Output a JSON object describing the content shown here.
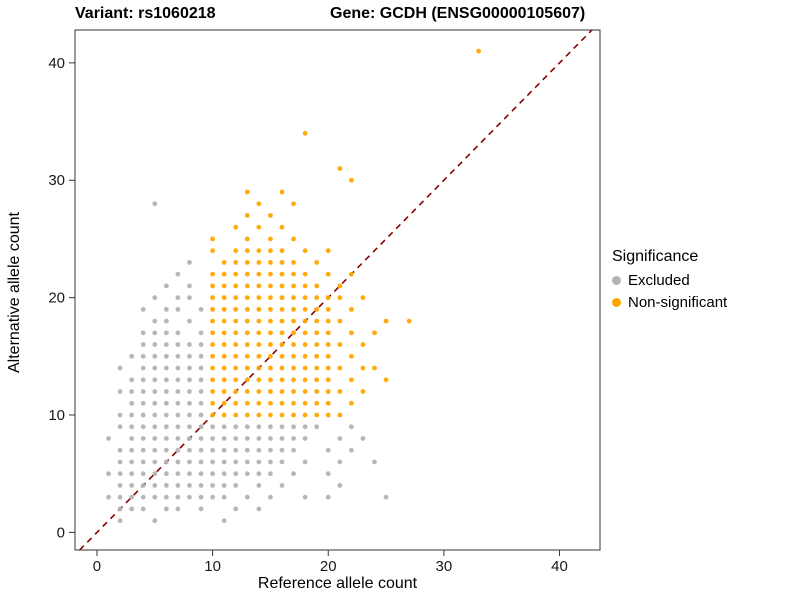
{
  "chart_data": {
    "type": "scatter",
    "title_left": "Variant: rs1060218",
    "title_right": "Gene: GCDH (ENSG00000105607)",
    "xlabel": "Reference allele count",
    "ylabel": "Alternative allele count",
    "x_ticks": [
      0,
      10,
      20,
      30,
      40
    ],
    "y_ticks": [
      0,
      10,
      20,
      30,
      40
    ],
    "xlim": [
      -1.9,
      43.5
    ],
    "ylim": [
      -1.5,
      42.8
    ],
    "grid": "off",
    "legend_title": "Significance",
    "legend_position": "right",
    "abline": {
      "slope": 1,
      "intercept": 0,
      "color": "#8B0000",
      "style": "dashed"
    },
    "series": [
      {
        "name": "Excluded",
        "color": "#b3b3b3",
        "rows": [
          {
            "y": 1,
            "x": [
              2,
              5,
              11
            ]
          },
          {
            "y": 2,
            "x": [
              2,
              3,
              4,
              6,
              7,
              9,
              12,
              14
            ]
          },
          {
            "y": 3,
            "x": [
              1,
              2,
              3,
              4,
              5,
              6,
              7,
              8,
              9,
              10,
              11,
              13,
              15,
              18,
              20,
              25
            ]
          },
          {
            "y": 4,
            "x": [
              2,
              3,
              4,
              5,
              6,
              7,
              8,
              9,
              10,
              11,
              12,
              14,
              16,
              21
            ]
          },
          {
            "y": 5,
            "x": [
              1,
              2,
              3,
              4,
              5,
              6,
              7,
              8,
              9,
              10,
              11,
              12,
              13,
              14,
              15,
              17,
              20
            ]
          },
          {
            "y": 6,
            "x": [
              2,
              3,
              4,
              5,
              6,
              7,
              8,
              9,
              10,
              11,
              12,
              13,
              14,
              15,
              16,
              18,
              21,
              24
            ]
          },
          {
            "y": 7,
            "x": [
              2,
              3,
              4,
              5,
              6,
              7,
              8,
              9,
              10,
              11,
              12,
              13,
              14,
              15,
              16,
              17,
              20,
              22
            ]
          },
          {
            "y": 8,
            "x": [
              1,
              3,
              4,
              5,
              6,
              7,
              8,
              9,
              10,
              11,
              12,
              13,
              14,
              15,
              16,
              17,
              18,
              21,
              23
            ]
          },
          {
            "y": 9,
            "x": [
              2,
              3,
              4,
              5,
              6,
              7,
              8,
              9,
              10,
              11,
              12,
              13,
              14,
              15,
              16,
              17,
              18,
              19,
              22
            ]
          },
          {
            "y": 10,
            "x": [
              2,
              3,
              4,
              5,
              6,
              7,
              8,
              9
            ]
          },
          {
            "y": 11,
            "x": [
              3,
              4,
              5,
              6,
              7,
              8,
              9
            ]
          },
          {
            "y": 12,
            "x": [
              2,
              3,
              4,
              5,
              6,
              7,
              8,
              9
            ]
          },
          {
            "y": 13,
            "x": [
              3,
              4,
              5,
              6,
              7,
              8,
              9
            ]
          },
          {
            "y": 14,
            "x": [
              2,
              4,
              5,
              6,
              7,
              8,
              9
            ]
          },
          {
            "y": 15,
            "x": [
              3,
              4,
              5,
              6,
              7,
              8,
              9
            ]
          },
          {
            "y": 16,
            "x": [
              4,
              5,
              6,
              7,
              8,
              9
            ]
          },
          {
            "y": 17,
            "x": [
              4,
              5,
              6,
              7,
              9
            ]
          },
          {
            "y": 18,
            "x": [
              5,
              6,
              8
            ]
          },
          {
            "y": 19,
            "x": [
              4,
              6,
              7,
              9
            ]
          },
          {
            "y": 20,
            "x": [
              5,
              7,
              8
            ]
          },
          {
            "y": 21,
            "x": [
              6,
              8
            ]
          },
          {
            "y": 22,
            "x": [
              7
            ]
          },
          {
            "y": 23,
            "x": [
              8
            ]
          },
          {
            "y": 28,
            "x": [
              5
            ]
          }
        ]
      },
      {
        "name": "Non-significant",
        "color": "#FFA500",
        "rows": [
          {
            "y": 10,
            "x": [
              10,
              11,
              12,
              13,
              14,
              15,
              16,
              17,
              18,
              19,
              20,
              21
            ]
          },
          {
            "y": 11,
            "x": [
              10,
              11,
              12,
              13,
              14,
              15,
              16,
              17,
              18,
              19,
              20,
              22
            ]
          },
          {
            "y": 12,
            "x": [
              10,
              11,
              12,
              13,
              14,
              15,
              16,
              17,
              18,
              19,
              20,
              21,
              23
            ]
          },
          {
            "y": 13,
            "x": [
              10,
              11,
              12,
              13,
              14,
              15,
              16,
              17,
              18,
              19,
              20,
              22,
              25
            ]
          },
          {
            "y": 14,
            "x": [
              10,
              11,
              12,
              13,
              14,
              15,
              16,
              17,
              18,
              19,
              20,
              21,
              23,
              24
            ]
          },
          {
            "y": 15,
            "x": [
              10,
              11,
              12,
              13,
              14,
              15,
              16,
              17,
              18,
              19,
              20,
              22
            ]
          },
          {
            "y": 16,
            "x": [
              10,
              11,
              12,
              13,
              14,
              15,
              16,
              17,
              18,
              19,
              20,
              21,
              23
            ]
          },
          {
            "y": 17,
            "x": [
              10,
              11,
              12,
              13,
              14,
              15,
              16,
              17,
              18,
              19,
              20,
              22,
              24
            ]
          },
          {
            "y": 18,
            "x": [
              10,
              11,
              12,
              13,
              14,
              15,
              16,
              17,
              18,
              19,
              20,
              21,
              25,
              27
            ]
          },
          {
            "y": 19,
            "x": [
              10,
              11,
              12,
              13,
              14,
              15,
              16,
              17,
              18,
              19,
              20,
              22
            ]
          },
          {
            "y": 20,
            "x": [
              10,
              11,
              12,
              13,
              14,
              15,
              16,
              17,
              18,
              19,
              20,
              21,
              23
            ]
          },
          {
            "y": 21,
            "x": [
              10,
              11,
              12,
              13,
              14,
              15,
              16,
              17,
              18,
              19,
              21
            ]
          },
          {
            "y": 22,
            "x": [
              10,
              11,
              12,
              13,
              14,
              15,
              16,
              17,
              18,
              20,
              22
            ]
          },
          {
            "y": 23,
            "x": [
              11,
              12,
              13,
              14,
              15,
              16,
              17,
              19
            ]
          },
          {
            "y": 24,
            "x": [
              10,
              12,
              13,
              14,
              15,
              16,
              18,
              20
            ]
          },
          {
            "y": 25,
            "x": [
              10,
              13,
              15,
              17
            ]
          },
          {
            "y": 26,
            "x": [
              12,
              14,
              16
            ]
          },
          {
            "y": 27,
            "x": [
              13,
              15
            ]
          },
          {
            "y": 28,
            "x": [
              14,
              17
            ]
          },
          {
            "y": 29,
            "x": [
              13,
              16
            ]
          },
          {
            "y": 30,
            "x": [
              22
            ]
          },
          {
            "y": 31,
            "x": [
              21
            ]
          },
          {
            "y": 34,
            "x": [
              18
            ]
          },
          {
            "y": 41,
            "x": [
              33
            ]
          }
        ]
      }
    ]
  }
}
